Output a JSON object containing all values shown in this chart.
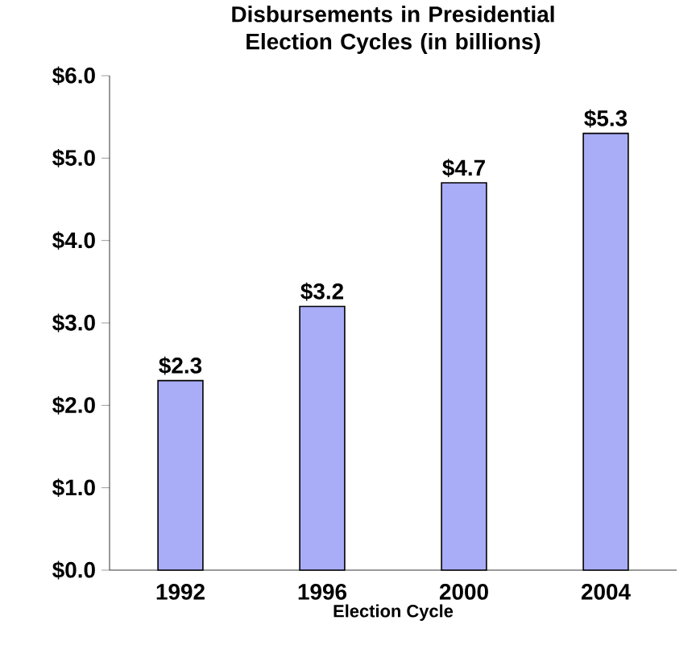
{
  "chart_data": {
    "type": "bar",
    "title": "Disbursements in Presidential Election Cycles (in billions)",
    "xlabel": "Election  Cycle",
    "categories": [
      "1992",
      "1996",
      "2000",
      "2004"
    ],
    "values": [
      2.3,
      3.2,
      4.7,
      5.3
    ],
    "value_labels": [
      "$2.3",
      "$3.2",
      "$4.7",
      "$5.3"
    ],
    "color": "#a9acf7",
    "ylim": [
      0,
      6
    ],
    "yticks": [
      {
        "value": 0,
        "label": "$0.0"
      },
      {
        "value": 1,
        "label": "$1.0"
      },
      {
        "value": 2,
        "label": "$2.0"
      },
      {
        "value": 3,
        "label": "$3.0"
      },
      {
        "value": 4,
        "label": "$4.0"
      },
      {
        "value": 5,
        "label": "$5.0"
      },
      {
        "value": 6,
        "label": "$6.0"
      }
    ],
    "grid": false
  }
}
